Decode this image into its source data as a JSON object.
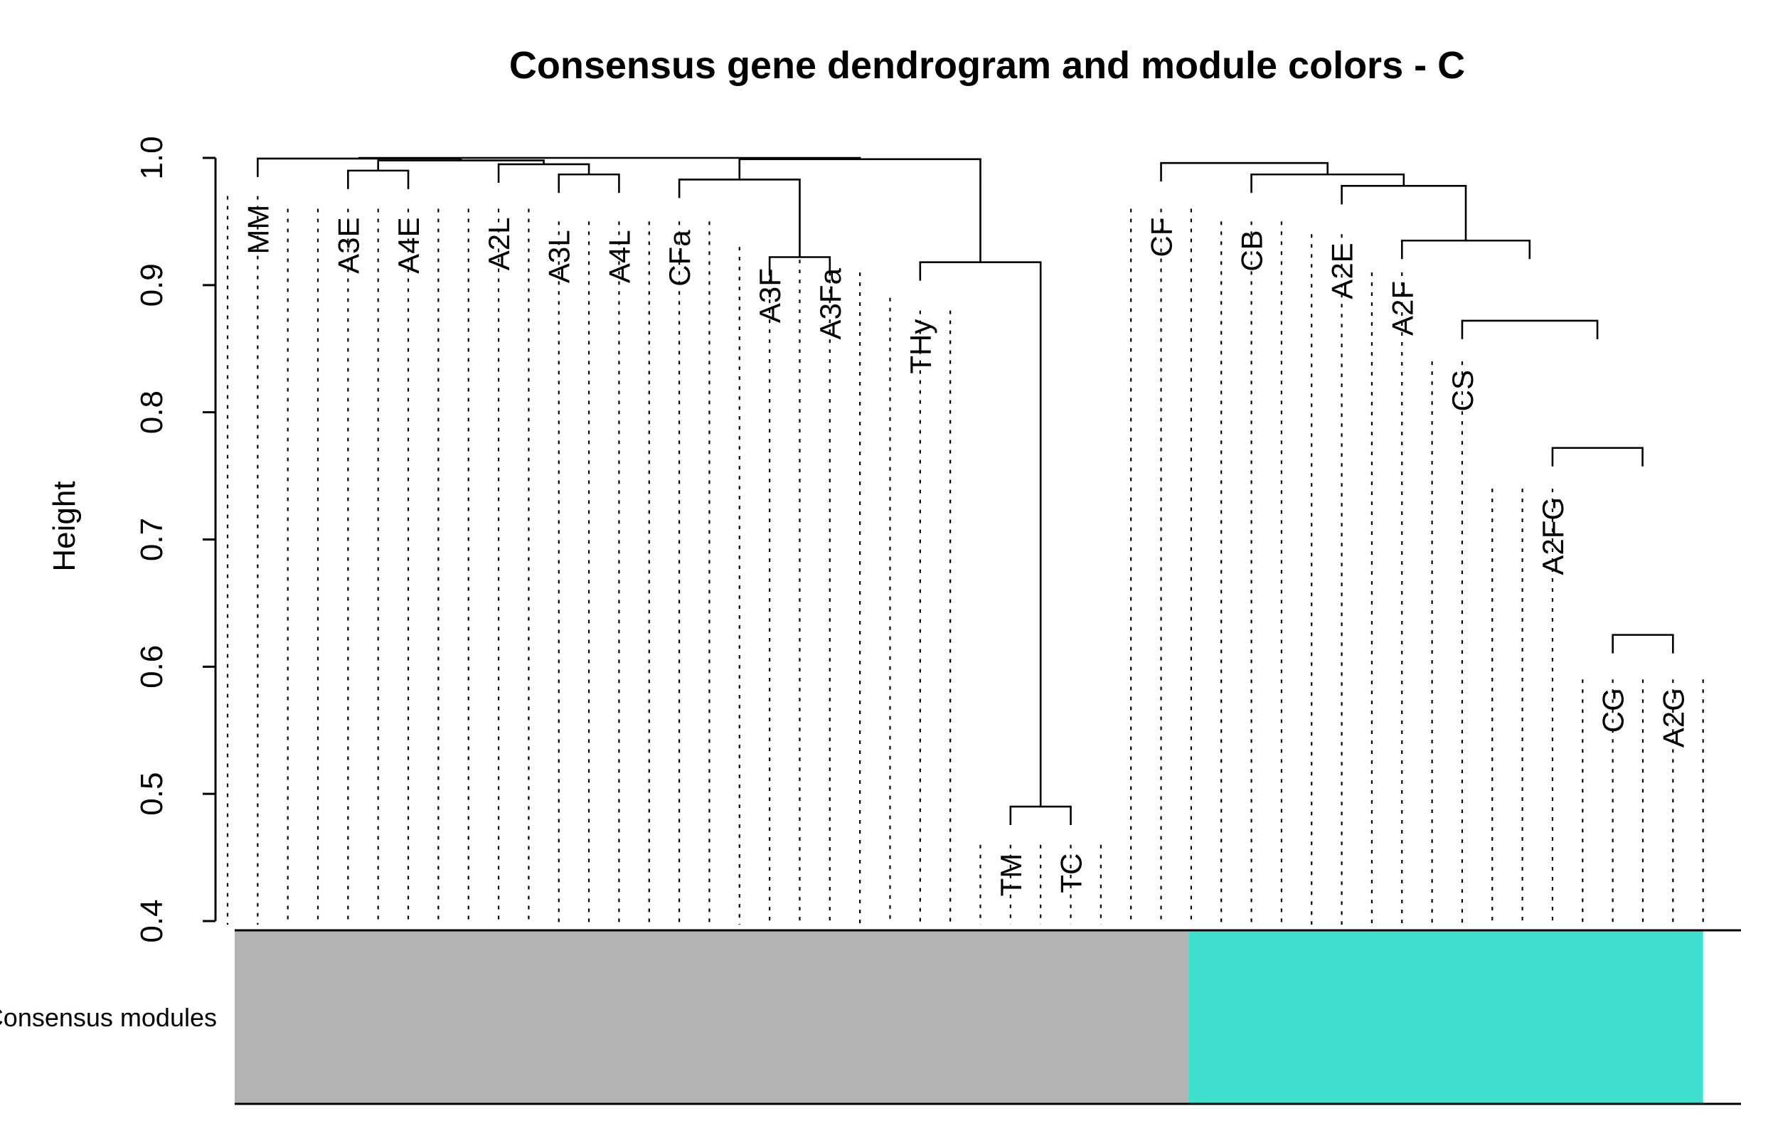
{
  "chart_data": {
    "type": "dendrogram",
    "title": "Consensus gene dendrogram and module colors - C",
    "ylabel": "Height",
    "ylim": [
      0.4,
      1.0
    ],
    "yticks": [
      "0.4",
      "0.5",
      "0.6",
      "0.7",
      "0.8",
      "0.9",
      "1.0"
    ],
    "grid": false,
    "module_row_label": "Consensus modules",
    "module_colors": {
      "grey": "#B3B3B3",
      "turquoise": "#40E0D0"
    },
    "leaf_count": 50,
    "labeled_leaves": [
      {
        "leaf": 2,
        "label": "MM"
      },
      {
        "leaf": 5,
        "label": "A3E"
      },
      {
        "leaf": 7,
        "label": "A4E"
      },
      {
        "leaf": 10,
        "label": "A2L"
      },
      {
        "leaf": 12,
        "label": "A3L"
      },
      {
        "leaf": 14,
        "label": "A4L"
      },
      {
        "leaf": 16,
        "label": "CFa"
      },
      {
        "leaf": 19,
        "label": "A3F"
      },
      {
        "leaf": 21,
        "label": "A3Fa"
      },
      {
        "leaf": 24,
        "label": "THy"
      },
      {
        "leaf": 27,
        "label": "TM"
      },
      {
        "leaf": 29,
        "label": "TC"
      },
      {
        "leaf": 32,
        "label": "CF"
      },
      {
        "leaf": 35,
        "label": "CB"
      },
      {
        "leaf": 38,
        "label": "A2E"
      },
      {
        "leaf": 40,
        "label": "A2F"
      },
      {
        "leaf": 42,
        "label": "CS"
      },
      {
        "leaf": 45,
        "label": "A2FG"
      },
      {
        "leaf": 47,
        "label": "CG"
      },
      {
        "leaf": 49,
        "label": "A2G"
      }
    ],
    "leaf_heights": [
      0.97,
      0.97,
      0.96,
      0.96,
      0.96,
      0.96,
      0.96,
      0.96,
      0.96,
      0.96,
      0.96,
      0.95,
      0.95,
      0.95,
      0.95,
      0.95,
      0.95,
      0.93,
      0.92,
      0.92,
      0.92,
      0.91,
      0.89,
      0.88,
      0.88,
      0.46,
      0.46,
      0.46,
      0.46,
      0.46,
      0.96,
      0.96,
      0.96,
      0.95,
      0.95,
      0.95,
      0.94,
      0.94,
      0.91,
      0.91,
      0.84,
      0.84,
      0.74,
      0.74,
      0.74,
      0.59,
      0.59,
      0.59,
      0.59,
      0.59
    ],
    "merges": [
      {
        "height": 0.49,
        "from": [
          27,
          29
        ]
      },
      {
        "height": 0.625,
        "from": [
          47,
          49
        ]
      },
      {
        "height": 0.772,
        "from": [
          45,
          47.99
        ]
      },
      {
        "height": 0.872,
        "from": [
          42,
          46.49
        ]
      },
      {
        "height": 0.918,
        "from": [
          24,
          28
        ]
      },
      {
        "height": 0.922,
        "from": [
          19,
          21
        ]
      },
      {
        "height": 0.935,
        "from": [
          40,
          44.24
        ]
      },
      {
        "height": 0.978,
        "from": [
          38,
          42.12
        ]
      },
      {
        "height": 0.983,
        "from": [
          16,
          20
        ]
      },
      {
        "height": 0.987,
        "from": [
          12,
          14
        ]
      },
      {
        "height": 0.987,
        "from": [
          35,
          40.06
        ]
      },
      {
        "height": 0.99,
        "from": [
          5,
          7
        ]
      },
      {
        "height": 0.995,
        "from": [
          10,
          13
        ]
      },
      {
        "height": 0.996,
        "from": [
          32,
          37.53
        ]
      },
      {
        "height": 0.998,
        "from": [
          6,
          11.5
        ]
      },
      {
        "height": 0.999,
        "from": [
          18,
          26
        ]
      },
      {
        "height": 0.9995,
        "from": [
          2,
          8.75
        ]
      },
      {
        "height": 1.0,
        "from": [
          5.375,
          22
        ]
      }
    ],
    "modules": [
      {
        "color": "grey",
        "from_leaf": 1,
        "to_leaf": 33.4
      },
      {
        "color": "turquoise",
        "from_leaf": 33.4,
        "to_leaf": 50.5
      }
    ]
  }
}
